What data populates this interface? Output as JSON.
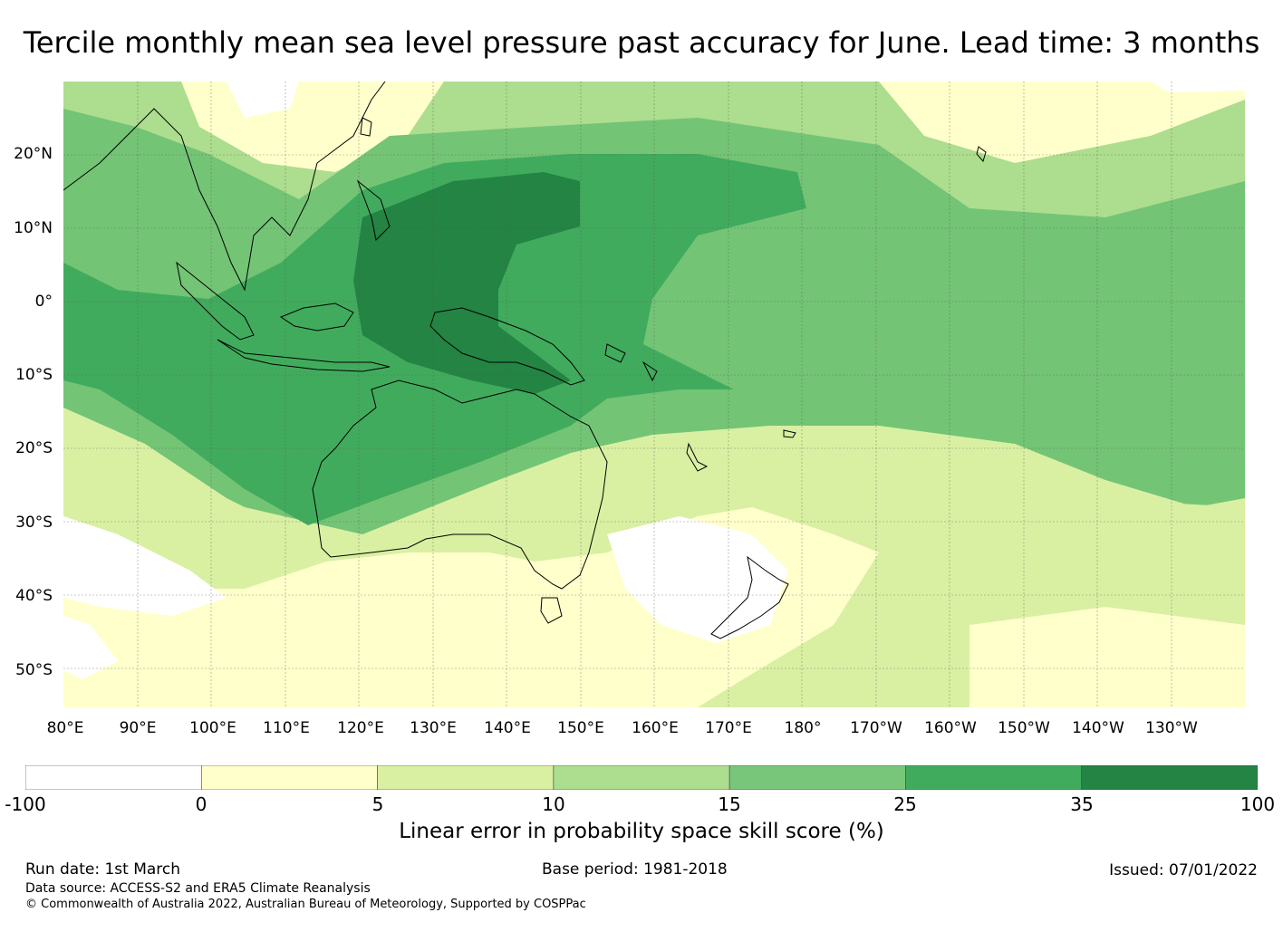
{
  "title": "Tercile monthly mean sea level pressure past accuracy for June. Lead time: 3 months",
  "map": {
    "lat_labels": [
      "20°N",
      "10°N",
      "0°",
      "10°S",
      "20°S",
      "30°S",
      "40°S",
      "50°S"
    ],
    "lon_labels": [
      "80°E",
      "90°E",
      "100°E",
      "110°E",
      "120°E",
      "130°E",
      "140°E",
      "150°E",
      "160°E",
      "170°E",
      "180°",
      "170°W",
      "160°W",
      "150°W",
      "140°W",
      "130°W"
    ],
    "regions": [
      {
        "name": "north-pacific-band",
        "skill": "15-25",
        "color": "#74c476"
      },
      {
        "name": "west-pacific-core",
        "skill": "25-35",
        "color": "#41ab5d"
      },
      {
        "name": "maritime-continent",
        "skill": "35-100",
        "color": "#238443"
      },
      {
        "name": "southern-ocean",
        "skill": "0-5",
        "color": "#ffffcc"
      },
      {
        "name": "tasman-sea",
        "skill": "-100-0",
        "color": "#ffffff"
      }
    ]
  },
  "colorbar": {
    "colors": [
      "#ffffff",
      "#ffffcc",
      "#d9f0a3",
      "#addd8e",
      "#78c679",
      "#41ab5d",
      "#238443"
    ],
    "ticks": [
      "-100",
      "0",
      "5",
      "10",
      "15",
      "25",
      "35",
      "100"
    ],
    "label": "Linear error in probability space skill score (%)"
  },
  "footer": {
    "run_date": "Run date: 1st March",
    "base_period": "Base period: 1981-2018",
    "issued": "Issued: 07/01/2022",
    "data_source": "Data source: ACCESS-S2 and ERA5 Climate Reanalysis",
    "copyright": "© Commonwealth of Australia 2022, Australian Bureau of Meteorology, Supported by COSPPac"
  }
}
